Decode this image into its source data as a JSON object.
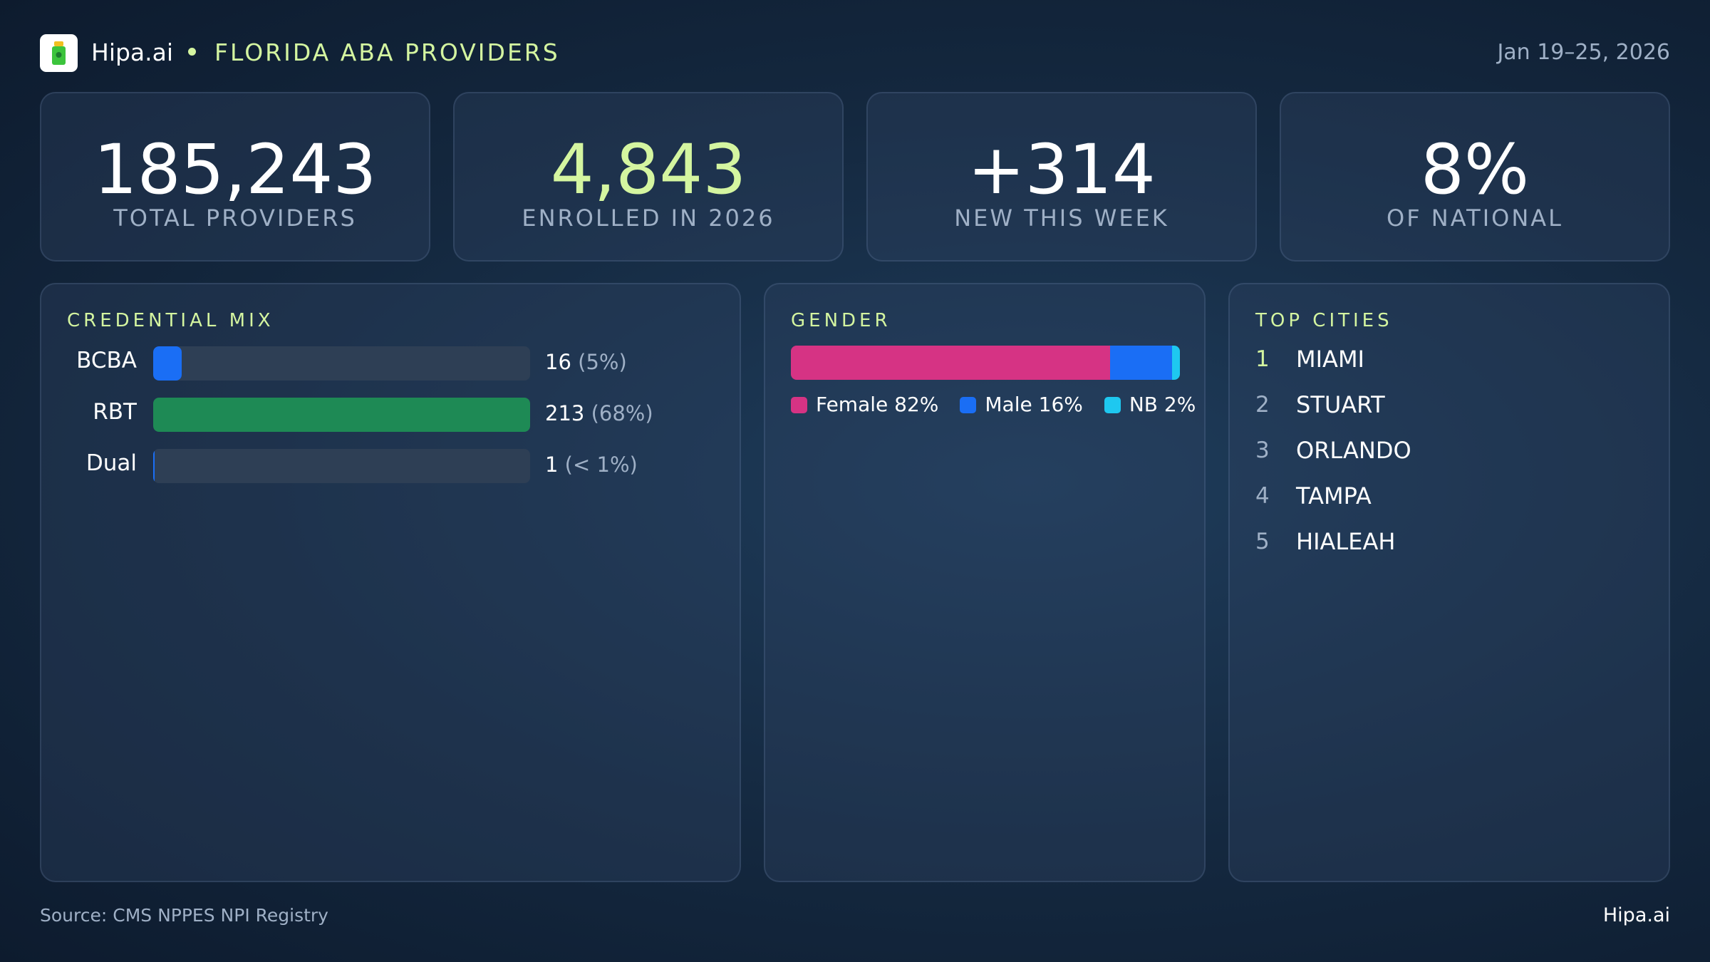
{
  "header": {
    "brand": "Hipa.ai",
    "title": "FLORIDA ABA PROVIDERS",
    "date_range": "Jan 19–25, 2026"
  },
  "kpis": [
    {
      "value": "185,243",
      "label": "TOTAL PROVIDERS",
      "color": "#ffffff"
    },
    {
      "value": "4,843",
      "label": "ENROLLED IN 2026",
      "color": "#d4f5a0"
    },
    {
      "value": "+314",
      "label": "NEW THIS WEEK",
      "color": "#ffffff"
    },
    {
      "value": "8%",
      "label": "OF NATIONAL",
      "color": "#ffffff"
    }
  ],
  "credential_mix": {
    "title": "CREDENTIAL MIX",
    "rows": [
      {
        "label": "BCBA",
        "value": 16,
        "pct_label": "(5%)",
        "color": "#1a6ef5"
      },
      {
        "label": "RBT",
        "value": 213,
        "pct_label": "(68%)",
        "color": "#1e8a55"
      },
      {
        "label": "Dual",
        "value": 1,
        "pct_label": "(< 1%)",
        "color": "#1a6ef5"
      }
    ]
  },
  "gender": {
    "title": "GENDER",
    "segments": [
      {
        "name": "Female",
        "value": 82,
        "value_label": "82%",
        "color": "#d63384"
      },
      {
        "name": "Male",
        "value": 16,
        "value_label": "16%",
        "color": "#1a6ef5"
      },
      {
        "name": "NB",
        "value": 2,
        "value_label": "2%",
        "color": "#1ec8f0"
      }
    ]
  },
  "top_cities": {
    "title": "TOP CITIES",
    "items": [
      {
        "rank": 1,
        "name": "MIAMI"
      },
      {
        "rank": 2,
        "name": "STUART"
      },
      {
        "rank": 3,
        "name": "ORLANDO"
      },
      {
        "rank": 4,
        "name": "TAMPA"
      },
      {
        "rank": 5,
        "name": "HIALEAH"
      }
    ]
  },
  "footer": {
    "source": "Source: CMS NPPES NPI Registry",
    "brand": "Hipa.ai"
  }
}
